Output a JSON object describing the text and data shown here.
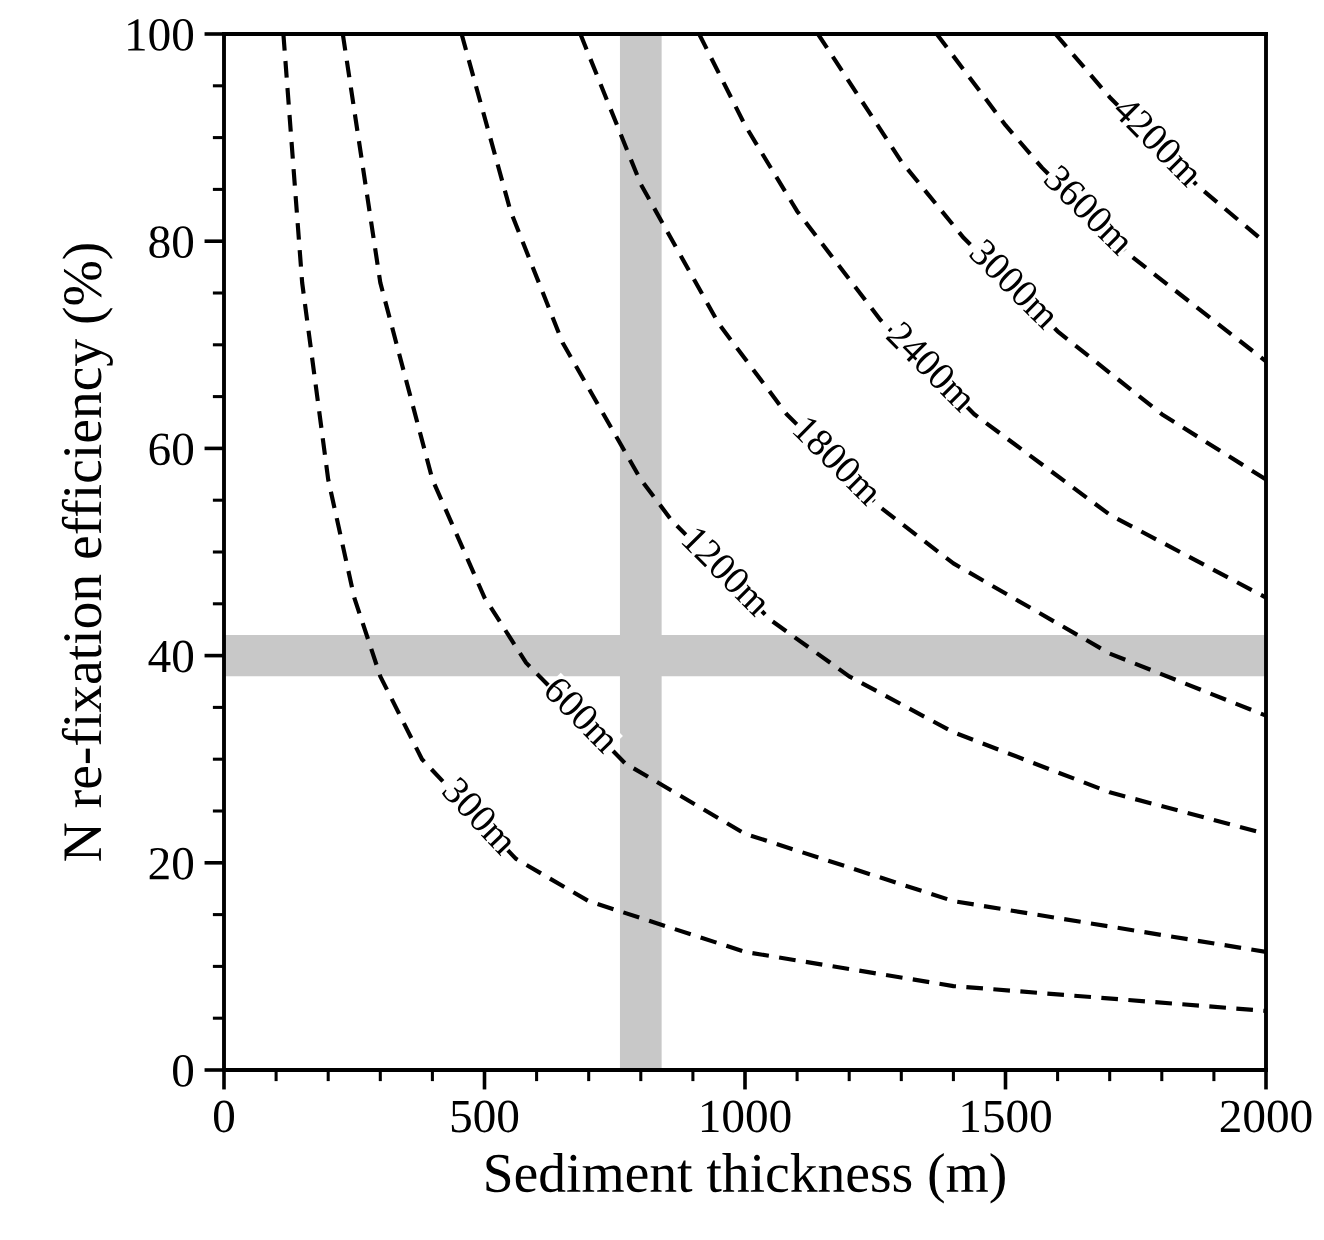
{
  "chart_data": {
    "type": "line",
    "xlabel": "Sediment thickness (m)",
    "ylabel": "N re-fixation efficiency (%)",
    "xlim": [
      0,
      2000
    ],
    "ylim": [
      0,
      100
    ],
    "xticks": [
      0,
      500,
      1000,
      1500,
      2000
    ],
    "yticks": [
      0,
      20,
      40,
      60,
      80,
      100
    ],
    "line_style": "dashed",
    "marker": "none",
    "series": [
      {
        "name": "300m",
        "color": "#000000",
        "x": [
          114,
          150,
          200,
          250,
          300,
          380,
          560,
          700,
          1000,
          1400,
          2000
        ],
        "values": [
          100,
          76,
          57,
          45.6,
          38,
          30,
          20.4,
          16.3,
          11.4,
          8.1,
          5.7
        ]
      },
      {
        "name": "600m",
        "color": "#000000",
        "x": [
          228,
          300,
          400,
          500,
          580,
          770,
          1000,
          1400,
          2000
        ],
        "values": [
          100,
          76,
          57,
          45.6,
          39.3,
          29.6,
          22.8,
          16.3,
          11.4
        ]
      },
      {
        "name": "1200m",
        "color": "#000000",
        "x": [
          456,
          550,
          650,
          800,
          860,
          1050,
          1200,
          1400,
          1700,
          2000
        ],
        "values": [
          100,
          82.9,
          70.2,
          57,
          53,
          43.4,
          38,
          32.6,
          26.8,
          22.8
        ]
      },
      {
        "name": "1800m",
        "color": "#000000",
        "x": [
          684,
          800,
          950,
          1080,
          1260,
          1400,
          1700,
          2000
        ],
        "values": [
          100,
          85.5,
          72,
          63.3,
          54.3,
          48.9,
          40.2,
          34.2
        ]
      },
      {
        "name": "2400m",
        "color": "#000000",
        "x": [
          912,
          1000,
          1100,
          1260,
          1440,
          1700,
          2000
        ],
        "values": [
          100,
          91.2,
          82.9,
          72.4,
          63.3,
          53.6,
          45.6
        ]
      },
      {
        "name": "3000m",
        "color": "#000000",
        "x": [
          1140,
          1300,
          1420,
          1600,
          1800,
          2000
        ],
        "values": [
          100,
          87.7,
          80.3,
          71.3,
          63.3,
          57
        ]
      },
      {
        "name": "3600m",
        "color": "#000000",
        "x": [
          1368,
          1500,
          1570,
          1740,
          2000
        ],
        "values": [
          100,
          91.2,
          87.1,
          78.6,
          68.4
        ]
      },
      {
        "name": "4200m",
        "color": "#000000",
        "x": [
          1596,
          1700,
          1870,
          2000
        ],
        "values": [
          100,
          93.9,
          85.3,
          79.8
        ]
      }
    ],
    "bands": [
      {
        "axis": "x",
        "from": 760,
        "to": 840,
        "color": "#c8c8c8"
      },
      {
        "axis": "y",
        "from": 38,
        "to": 42,
        "color": "#c8c8c8"
      }
    ]
  }
}
